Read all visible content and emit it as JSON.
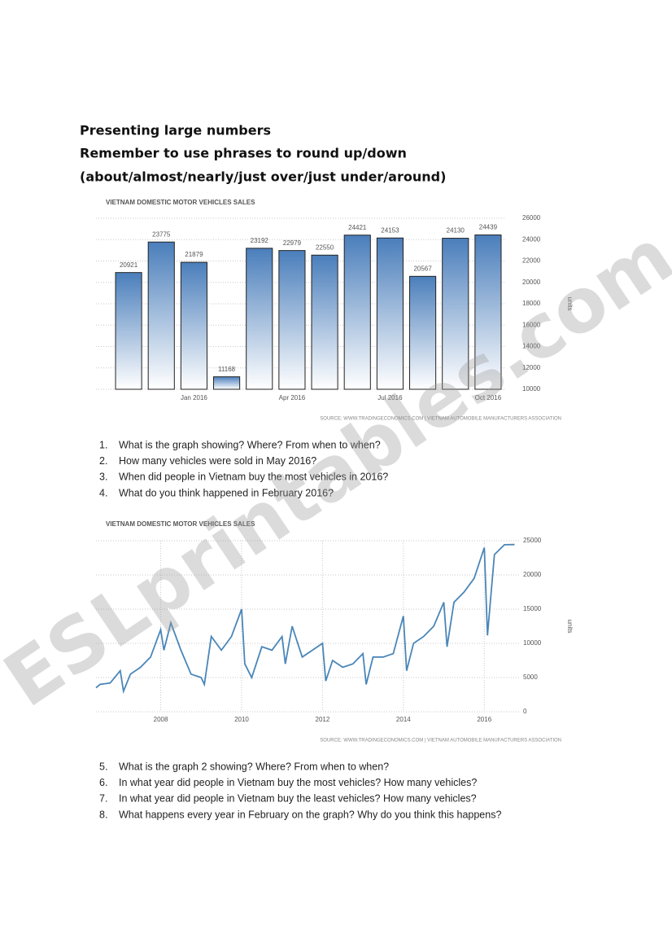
{
  "title_lines": [
    "Presenting large numbers",
    "Remember to use phrases to round up/down",
    "(about/almost/nearly/just over/just under/around)"
  ],
  "chart_data": [
    {
      "type": "bar",
      "title": "VIETNAM DOMESTIC MOTOR VEHICLES SALES",
      "y_label": "units",
      "source": "SOURCE: WWW.TRADINGECONOMICS.COM | VIETNAM AUTOMOBILE MANUFACTURERS ASSOCIATION",
      "categories": [
        null,
        null,
        "Jan 2016",
        null,
        null,
        "Apr 2016",
        null,
        null,
        "Jul 2016",
        null,
        null,
        "Oct 2016"
      ],
      "values": [
        20921,
        23775,
        21879,
        11168,
        23192,
        22979,
        22550,
        24421,
        24153,
        20567,
        24130,
        24439
      ],
      "color": "#4a7ebb",
      "ylim": [
        10000,
        26000
      ],
      "yticks": [
        10000,
        12000,
        14000,
        16000,
        18000,
        20000,
        22000,
        24000,
        26000
      ],
      "grid": true
    },
    {
      "type": "line",
      "title": "VIETNAM DOMESTIC MOTOR VEHICLES SALES",
      "y_label": "units",
      "source": "SOURCE: WWW.TRADINGECONOMICS.COM | VIETNAM AUTOMOBILE MANUFACTURERS ASSOCIATION",
      "x": [
        2006.4,
        2006.5,
        2006.75,
        2007.0,
        2007.08,
        2007.25,
        2007.5,
        2007.75,
        2008.0,
        2008.08,
        2008.25,
        2008.5,
        2008.75,
        2009.0,
        2009.08,
        2009.25,
        2009.5,
        2009.75,
        2010.0,
        2010.08,
        2010.25,
        2010.5,
        2010.75,
        2011.0,
        2011.08,
        2011.25,
        2011.5,
        2011.75,
        2012.0,
        2012.08,
        2012.25,
        2012.5,
        2012.75,
        2013.0,
        2013.08,
        2013.25,
        2013.5,
        2013.75,
        2014.0,
        2014.08,
        2014.25,
        2014.5,
        2014.75,
        2015.0,
        2015.08,
        2015.25,
        2015.5,
        2015.75,
        2016.0,
        2016.08,
        2016.25,
        2016.5,
        2016.75
      ],
      "values": [
        3500,
        4000,
        4200,
        6000,
        3000,
        5500,
        6500,
        8000,
        12000,
        9000,
        13000,
        9000,
        5500,
        5000,
        4000,
        11000,
        9000,
        11000,
        15000,
        7000,
        5000,
        9500,
        9000,
        11000,
        7000,
        12500,
        8000,
        9000,
        10000,
        4500,
        7500,
        6500,
        7000,
        8500,
        4000,
        8000,
        8000,
        8500,
        14000,
        6000,
        10000,
        11000,
        12500,
        16000,
        9500,
        16000,
        17500,
        19500,
        24000,
        11168,
        22979,
        24421,
        24439
      ],
      "color": "#4a86b8",
      "xlim": [
        2006.4,
        2016.9
      ],
      "xticks": [
        2008,
        2010,
        2012,
        2014,
        2016
      ],
      "ylim": [
        0,
        25000
      ],
      "yticks": [
        0,
        5000,
        10000,
        15000,
        20000,
        25000
      ],
      "grid": true
    }
  ],
  "questions_1": [
    {
      "number": "1.",
      "text": "What is the graph showing? Where? From when to when?"
    },
    {
      "number": "2.",
      "text": "How many vehicles were sold in May 2016?"
    },
    {
      "number": "3.",
      "text": "When did people in Vietnam buy the most vehicles in 2016?"
    },
    {
      "number": "4.",
      "text": "What do you think happened in February 2016?"
    }
  ],
  "questions_2": [
    {
      "number": "5.",
      "text": "What is the graph 2 showing? Where? From when to when?"
    },
    {
      "number": "6.",
      "text": "In what year did people in Vietnam buy the most vehicles? How many vehicles?"
    },
    {
      "number": "7.",
      "text": "In what year did people in Vietnam buy the least vehicles? How many vehicles?"
    },
    {
      "number": "8.",
      "text": "What happens every year in February on the graph? Why do you think this happens?"
    }
  ],
  "watermark": "ESLprintables.com"
}
